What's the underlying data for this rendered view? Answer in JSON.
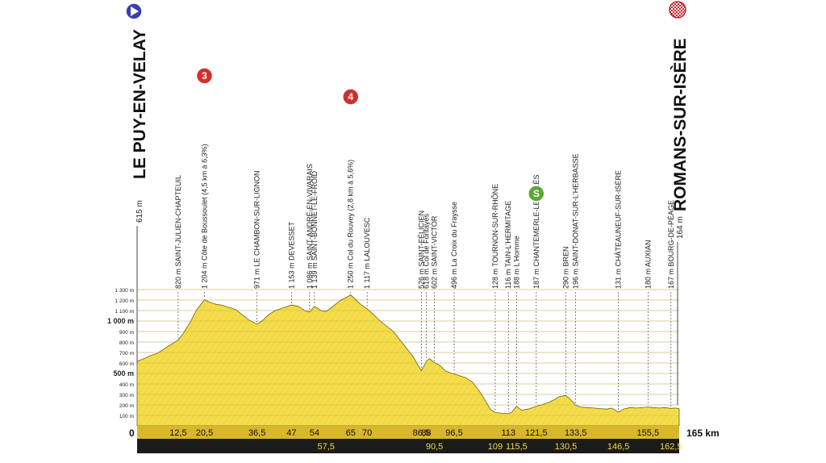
{
  "chart_data": {
    "type": "area",
    "distance_unit": "km",
    "total_label": "165 km",
    "zero_label": "0",
    "ylim": [
      0,
      1300
    ],
    "y_ticks": [
      {
        "v": 100,
        "label": "100 m",
        "bold": false
      },
      {
        "v": 200,
        "label": "200 m",
        "bold": false
      },
      {
        "v": 300,
        "label": "300 m",
        "bold": false
      },
      {
        "v": 400,
        "label": "400 m",
        "bold": false
      },
      {
        "v": 500,
        "label": "500 m",
        "bold": true
      },
      {
        "v": 600,
        "label": "600 m",
        "bold": false
      },
      {
        "v": 700,
        "label": "700 m",
        "bold": false
      },
      {
        "v": 800,
        "label": "800 m",
        "bold": false
      },
      {
        "v": 900,
        "label": "900 m",
        "bold": false
      },
      {
        "v": 1000,
        "label": "1 000 m",
        "bold": true
      },
      {
        "v": 1100,
        "label": "1 100 m",
        "bold": false
      },
      {
        "v": 1200,
        "label": "1 200 m",
        "bold": false
      },
      {
        "v": 1300,
        "label": "1 300 m",
        "bold": false
      }
    ],
    "start": {
      "name": "LE PUY-EN-VELAY",
      "alt": "615 m"
    },
    "finish": {
      "name": "ROMANS-SUR-ISÈRE",
      "alt": "164 m"
    },
    "profile": [
      [
        0,
        615
      ],
      [
        2,
        640
      ],
      [
        4,
        670
      ],
      [
        6,
        690
      ],
      [
        8,
        730
      ],
      [
        10,
        770
      ],
      [
        12.5,
        820
      ],
      [
        14,
        880
      ],
      [
        16,
        980
      ],
      [
        18,
        1100
      ],
      [
        20.5,
        1204
      ],
      [
        22,
        1180
      ],
      [
        24,
        1160
      ],
      [
        26,
        1150
      ],
      [
        28,
        1130
      ],
      [
        30,
        1110
      ],
      [
        32,
        1060
      ],
      [
        34,
        1010
      ],
      [
        36.5,
        971
      ],
      [
        38,
        1000
      ],
      [
        40,
        1060
      ],
      [
        42,
        1100
      ],
      [
        44,
        1120
      ],
      [
        47,
        1153
      ],
      [
        49,
        1140
      ],
      [
        51,
        1100
      ],
      [
        52.5,
        1086
      ],
      [
        54,
        1139
      ],
      [
        56,
        1100
      ],
      [
        57.5,
        1090
      ],
      [
        60,
        1150
      ],
      [
        62,
        1200
      ],
      [
        64,
        1230
      ],
      [
        65,
        1250
      ],
      [
        66,
        1220
      ],
      [
        68,
        1160
      ],
      [
        70,
        1117
      ],
      [
        72,
        1060
      ],
      [
        74,
        1000
      ],
      [
        76,
        950
      ],
      [
        78,
        900
      ],
      [
        80,
        820
      ],
      [
        82,
        740
      ],
      [
        84,
        660
      ],
      [
        86.5,
        526
      ],
      [
        87.5,
        580
      ],
      [
        88,
        618
      ],
      [
        89,
        640
      ],
      [
        90.5,
        602
      ],
      [
        92,
        580
      ],
      [
        94,
        520
      ],
      [
        96.5,
        496
      ],
      [
        98,
        480
      ],
      [
        100,
        460
      ],
      [
        102,
        420
      ],
      [
        104,
        340
      ],
      [
        106,
        240
      ],
      [
        107.5,
        160
      ],
      [
        109,
        128
      ],
      [
        111,
        120
      ],
      [
        113,
        116
      ],
      [
        114,
        130
      ],
      [
        115.5,
        188
      ],
      [
        117,
        150
      ],
      [
        119,
        160
      ],
      [
        121.5,
        187
      ],
      [
        123,
        200
      ],
      [
        125,
        220
      ],
      [
        127,
        250
      ],
      [
        128.5,
        280
      ],
      [
        130.5,
        290
      ],
      [
        132,
        250
      ],
      [
        133.5,
        196
      ],
      [
        135,
        180
      ],
      [
        137,
        175
      ],
      [
        139,
        170
      ],
      [
        141,
        165
      ],
      [
        143,
        160
      ],
      [
        144.5,
        170
      ],
      [
        146.5,
        131
      ],
      [
        148,
        160
      ],
      [
        150,
        175
      ],
      [
        152,
        170
      ],
      [
        155.5,
        180
      ],
      [
        157,
        175
      ],
      [
        159,
        170
      ],
      [
        160.5,
        175
      ],
      [
        162.5,
        167
      ],
      [
        164,
        170
      ],
      [
        165,
        164
      ]
    ],
    "km_labels_top": [
      "12,5",
      "20,5",
      "36,5",
      "47",
      "54",
      "65",
      "70",
      "86,5",
      "88",
      "96,5",
      "113",
      "121,5",
      "133,5",
      "155,5"
    ],
    "km_labels_bottom": [
      "57,5",
      "90,5",
      "109",
      "115,5",
      "130,5",
      "146,5",
      "162,5"
    ],
    "km_values_top": [
      12.5,
      20.5,
      36.5,
      47,
      54,
      65,
      70,
      86.5,
      88,
      96.5,
      113,
      121.5,
      133.5,
      155.5
    ],
    "km_values_bottom": [
      57.5,
      90.5,
      109,
      115.5,
      130.5,
      146.5,
      162.5
    ],
    "places": [
      {
        "km": 12.5,
        "text": "820 m SAINT-JULIEN-CHAPTEUIL"
      },
      {
        "km": 20.5,
        "text": "1 204 m Côte de Boussoulet (4,5 km à 6,3%)"
      },
      {
        "km": 36.5,
        "text": "971 m LE CHAMBON-SUR-LIGNON"
      },
      {
        "km": 47,
        "text": "1 153 m DEVESSET"
      },
      {
        "km": 52.5,
        "text": "1 086 m SAINT-ANDRÉ-EN-VIVARAIS"
      },
      {
        "km": 54,
        "text": "1 139 m SAINT-BONNET-LE-FROID"
      },
      {
        "km": 65,
        "text": "1 250 m Col du Rouvey (2,8 km à 5,6%)"
      },
      {
        "km": 70,
        "text": "1 117 m LALOUVESC"
      },
      {
        "km": 86.5,
        "text": "526 m SAINT-FÉLICIEN"
      },
      {
        "km": 88,
        "text": "618 m Col de Fontayes"
      },
      {
        "km": 90.5,
        "text": "602 m SAINT-VICTOR"
      },
      {
        "km": 96.5,
        "text": "496 m La Croix du Fraysse"
      },
      {
        "km": 109,
        "text": "128 m TOURNON-SUR-RHÔNE"
      },
      {
        "km": 113,
        "text": "116 m TAIN-L'HERMITAGE"
      },
      {
        "km": 115.5,
        "text": "188 m L'Homme"
      },
      {
        "km": 121.5,
        "text": "187 m CHANTEMERLE-LES-BLÉS"
      },
      {
        "km": 130.5,
        "text": "290 m BREN"
      },
      {
        "km": 133.5,
        "text": "196 m SAINT-DONAT-SUR-L'HERBASSE"
      },
      {
        "km": 146.5,
        "text": "131 m CHÂTEAUNEUF-SUR-ISÈRE"
      },
      {
        "km": 155.5,
        "text": "180 m AUXIAN"
      },
      {
        "km": 162.5,
        "text": "167 m BOURG-DE-PÉAGE"
      }
    ],
    "markers": [
      {
        "km": 20.5,
        "label": "3",
        "color": "#d0312d"
      },
      {
        "km": 65,
        "label": "4",
        "color": "#d0312d"
      },
      {
        "km": 121.5,
        "label": "S",
        "color": "#5aa832"
      }
    ],
    "colors": {
      "fill": "#f4dd4a",
      "fill_dark": "#d8b72a",
      "bar": "#1b1b1b",
      "bar_text": "#f3d94a",
      "start": "#3b3fb0",
      "finish": "#c0262d"
    }
  }
}
